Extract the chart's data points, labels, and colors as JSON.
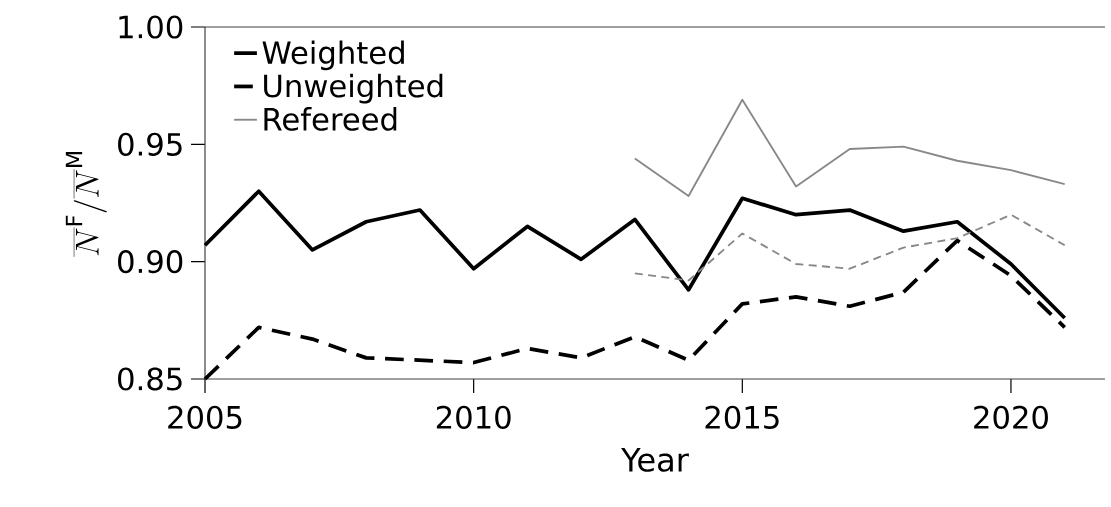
{
  "chart_data": {
    "type": "line",
    "xlabel": "Year",
    "ylabel": "\\overline{N}^{\\mathrm{F}}/\\overline{N}^{\\mathrm{M}}",
    "x": [
      2005,
      2006,
      2007,
      2008,
      2009,
      2010,
      2011,
      2012,
      2013,
      2014,
      2015,
      2016,
      2017,
      2018,
      2019,
      2020,
      2021
    ],
    "series": [
      {
        "name": "Weighted",
        "color": "#000000",
        "line_style": "solid",
        "values": [
          0.907,
          0.93,
          0.905,
          0.917,
          0.922,
          0.897,
          0.915,
          0.901,
          0.918,
          0.888,
          0.927,
          0.92,
          0.922,
          0.913,
          0.917,
          0.899,
          0.876
        ]
      },
      {
        "name": "Unweighted",
        "color": "#000000",
        "line_style": "dashed",
        "values": [
          0.85,
          0.872,
          0.867,
          0.859,
          0.858,
          0.857,
          0.863,
          0.859,
          0.868,
          0.858,
          0.882,
          0.885,
          0.881,
          0.887,
          0.909,
          0.894,
          0.872
        ]
      },
      {
        "name": "Refereed",
        "color": "#888888",
        "line_style": "solid",
        "values": [
          null,
          null,
          null,
          null,
          null,
          null,
          null,
          null,
          0.944,
          0.928,
          0.969,
          0.932,
          0.948,
          0.949,
          0.943,
          0.939,
          0.933
        ]
      },
      {
        "color": "#888888",
        "line_style": "dashed",
        "values": [
          null,
          null,
          null,
          null,
          null,
          null,
          null,
          null,
          0.895,
          0.892,
          0.912,
          0.899,
          0.897,
          0.906,
          0.91,
          0.92,
          0.907
        ]
      }
    ],
    "xlim": [
      2005,
      2021.75
    ],
    "xticks": [
      2005,
      2010,
      2015,
      2020
    ],
    "ylim": [
      0.85,
      1.0
    ],
    "yticks": [
      {
        "value": 0.85,
        "label": "0.85"
      },
      {
        "value": 0.9,
        "label": "0.90"
      },
      {
        "value": 0.95,
        "label": "0.95"
      },
      {
        "value": 1.0,
        "label": "1.00"
      }
    ],
    "grid": false,
    "legend": "top left",
    "marker": "none"
  }
}
